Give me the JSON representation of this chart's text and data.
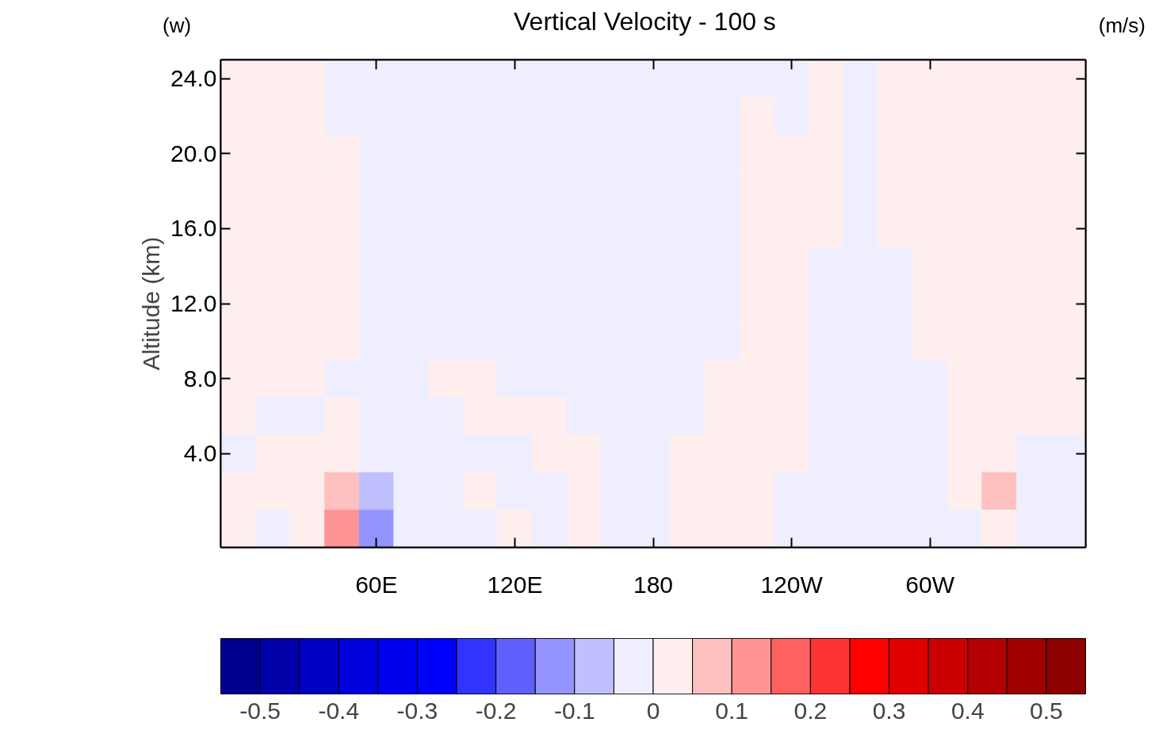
{
  "chart_data": {
    "type": "heatmap",
    "title": "Vertical Velocity - 100 s",
    "ylabel": "Altitude (km)",
    "annotations": [
      "(w)",
      "(m/s)"
    ],
    "categories": [
      null,
      null,
      null,
      null,
      "60E",
      null,
      null,
      null,
      "120E",
      null,
      null,
      null,
      "180",
      null,
      null,
      null,
      "120W",
      null,
      null,
      null,
      "60W",
      null,
      null,
      null,
      null
    ],
    "y_categories": [
      "24.0",
      null,
      "20.0",
      null,
      "16.0",
      null,
      "12.0",
      null,
      "8.0",
      null,
      "4.0",
      null,
      null
    ],
    "cells": [
      [
        0.02,
        0.02,
        0.02,
        -0.02,
        -0.02,
        -0.02,
        -0.02,
        -0.02,
        -0.02,
        -0.02,
        -0.02,
        -0.02,
        -0.02,
        -0.02,
        -0.02,
        -0.02,
        -0.02,
        0.02,
        -0.02,
        0.02,
        0.02,
        0.02,
        0.02,
        0.02,
        0.02
      ],
      [
        0.02,
        0.02,
        0.02,
        -0.02,
        -0.02,
        -0.02,
        -0.02,
        -0.02,
        -0.02,
        -0.02,
        -0.02,
        -0.02,
        -0.02,
        -0.02,
        -0.02,
        0.02,
        -0.02,
        0.02,
        -0.02,
        0.02,
        0.02,
        0.02,
        0.02,
        0.02,
        0.02
      ],
      [
        0.02,
        0.02,
        0.02,
        0.02,
        -0.02,
        -0.02,
        -0.02,
        -0.02,
        -0.02,
        -0.02,
        -0.02,
        -0.02,
        -0.02,
        -0.02,
        -0.02,
        0.02,
        0.02,
        0.02,
        -0.02,
        0.02,
        0.02,
        0.02,
        0.02,
        0.02,
        0.02
      ],
      [
        0.02,
        0.02,
        0.02,
        0.02,
        -0.02,
        -0.02,
        -0.02,
        -0.02,
        -0.02,
        -0.02,
        -0.02,
        -0.02,
        -0.02,
        -0.02,
        -0.02,
        0.02,
        0.02,
        0.02,
        -0.02,
        0.02,
        0.02,
        0.02,
        0.02,
        0.02,
        0.02
      ],
      [
        0.02,
        0.02,
        0.02,
        0.02,
        -0.02,
        -0.02,
        -0.02,
        -0.02,
        -0.02,
        -0.02,
        -0.02,
        -0.02,
        -0.02,
        -0.02,
        -0.02,
        0.02,
        0.02,
        0.02,
        -0.02,
        0.02,
        0.02,
        0.02,
        0.02,
        0.02,
        0.02
      ],
      [
        0.02,
        0.02,
        0.02,
        0.02,
        -0.02,
        -0.02,
        -0.02,
        -0.02,
        -0.02,
        -0.02,
        -0.02,
        -0.02,
        -0.02,
        -0.02,
        -0.02,
        0.02,
        0.02,
        -0.02,
        -0.02,
        -0.02,
        0.02,
        0.02,
        0.02,
        0.02,
        0.02
      ],
      [
        0.02,
        0.02,
        0.02,
        0.02,
        -0.02,
        -0.02,
        -0.02,
        -0.02,
        -0.02,
        -0.02,
        -0.02,
        -0.02,
        -0.02,
        -0.02,
        -0.02,
        0.02,
        0.02,
        -0.02,
        -0.02,
        -0.02,
        0.02,
        0.02,
        0.02,
        0.02,
        0.02
      ],
      [
        0.02,
        0.02,
        0.02,
        0.02,
        -0.02,
        -0.02,
        -0.02,
        -0.02,
        -0.02,
        -0.02,
        -0.02,
        -0.02,
        -0.02,
        -0.02,
        -0.02,
        0.02,
        0.02,
        -0.02,
        -0.02,
        -0.02,
        0.02,
        0.02,
        0.02,
        0.02,
        0.02
      ],
      [
        0.02,
        0.02,
        0.02,
        -0.02,
        -0.02,
        -0.02,
        0.02,
        0.02,
        -0.02,
        -0.02,
        -0.02,
        -0.02,
        -0.02,
        -0.02,
        0.02,
        0.02,
        0.02,
        -0.02,
        -0.02,
        -0.02,
        -0.02,
        0.02,
        0.02,
        0.02,
        0.02
      ],
      [
        0.02,
        -0.02,
        -0.02,
        0.02,
        -0.02,
        -0.02,
        -0.02,
        0.02,
        0.02,
        0.02,
        -0.02,
        -0.02,
        -0.02,
        -0.02,
        0.02,
        0.02,
        0.02,
        -0.02,
        -0.02,
        -0.02,
        -0.02,
        0.02,
        0.02,
        0.02,
        0.02
      ],
      [
        -0.02,
        0.02,
        0.02,
        0.02,
        -0.02,
        -0.02,
        -0.02,
        -0.02,
        -0.02,
        0.02,
        0.02,
        -0.02,
        -0.02,
        0.02,
        0.02,
        0.02,
        0.02,
        -0.02,
        -0.02,
        -0.02,
        -0.02,
        0.02,
        0.02,
        -0.02,
        -0.02
      ],
      [
        0.02,
        0.02,
        0.02,
        0.07,
        -0.07,
        -0.02,
        -0.02,
        0.02,
        -0.02,
        -0.02,
        0.02,
        -0.02,
        -0.02,
        0.02,
        0.02,
        0.02,
        -0.02,
        -0.02,
        -0.02,
        -0.02,
        -0.02,
        0.02,
        0.07,
        -0.02,
        -0.02
      ],
      [
        0.02,
        -0.02,
        0.02,
        0.12,
        -0.12,
        -0.02,
        -0.02,
        -0.02,
        0.02,
        -0.02,
        0.02,
        -0.02,
        -0.02,
        0.02,
        0.02,
        0.02,
        -0.02,
        -0.02,
        -0.02,
        -0.02,
        -0.02,
        -0.02,
        0.02,
        -0.02,
        -0.02
      ]
    ],
    "clim": [
      -0.55,
      0.55
    ],
    "cticks": [
      -0.5,
      -0.4,
      -0.3,
      -0.2,
      -0.1,
      0,
      0.1,
      0.2,
      0.3,
      0.4,
      0.5
    ],
    "colors": [
      "#000090",
      "#0000a8",
      "#0000c4",
      "#0000dc",
      "#0000f0",
      "#0000ff",
      "#3333ff",
      "#6060ff",
      "#9494ff",
      "#c0c0ff",
      "#eeeeff",
      "#ffeeee",
      "#ffc0c0",
      "#ff9494",
      "#ff6060",
      "#ff3333",
      "#ff0000",
      "#e00000",
      "#cc0000",
      "#b40000",
      "#a00000",
      "#8c0000"
    ]
  }
}
